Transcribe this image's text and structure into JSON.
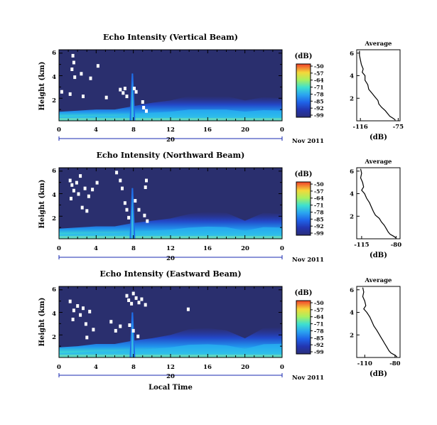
{
  "chart_data": [
    {
      "type": "heatmap",
      "title": "Echo Intensity (Vertical Beam)",
      "ylabel": "Height (km)",
      "xlim": [
        0,
        24
      ],
      "ylim": [
        0,
        6.3
      ],
      "x_ticks": [
        "0",
        "4",
        "8",
        "12",
        "16",
        "20",
        "0"
      ],
      "y_ticks": [
        "2",
        "4",
        "6"
      ],
      "date_label": "20",
      "month_label": "Nov 2011",
      "colorbar": {
        "unit": "(dB)",
        "ticks": [
          "-50",
          "-57",
          "-64",
          "-71",
          "-78",
          "-85",
          "-92",
          "-99"
        ]
      },
      "profile": {
        "title": "Average",
        "xlabel": "(dB)",
        "x_ticks": [
          "-116",
          "-75"
        ],
        "y_ticks": [
          "2",
          "4",
          "6"
        ],
        "xlim": [
          -120,
          -73
        ],
        "x": [
          -117,
          -117,
          -116,
          -115,
          -113,
          -114,
          -111,
          -111,
          -108,
          -107,
          -103,
          -100,
          -97,
          -96,
          -93,
          -89,
          -86,
          -84,
          -80,
          -78
        ],
        "y": [
          6.2,
          5.8,
          5.4,
          5.0,
          4.6,
          4.3,
          4.0,
          3.6,
          3.2,
          2.8,
          2.4,
          2.1,
          1.8,
          1.5,
          1.2,
          0.9,
          0.6,
          0.4,
          0.2,
          0.05
        ]
      },
      "white_flags": [
        [
          1.5,
          5.8
        ],
        [
          1.6,
          5.2
        ],
        [
          1.4,
          4.6
        ],
        [
          1.7,
          3.9
        ],
        [
          1.2,
          2.4
        ],
        [
          0.3,
          2.6
        ],
        [
          2.4,
          4.2
        ],
        [
          2.6,
          2.2
        ],
        [
          3.4,
          3.8
        ],
        [
          4.2,
          4.9
        ],
        [
          6.6,
          2.8
        ],
        [
          6.9,
          2.5
        ],
        [
          7.1,
          2.9
        ],
        [
          7.3,
          2.2
        ],
        [
          8.1,
          2.9
        ],
        [
          8.3,
          2.6
        ],
        [
          9.0,
          1.7
        ],
        [
          9.1,
          1.2
        ],
        [
          9.4,
          0.9
        ],
        [
          5.1,
          2.1
        ]
      ],
      "activity": {
        "low_band": {
          "x": [
            0,
            2,
            4,
            6,
            8,
            10,
            12,
            14,
            16,
            18,
            20,
            22,
            24
          ],
          "height": [
            0.8,
            0.9,
            1.0,
            1.0,
            1.3,
            1.6,
            1.8,
            2.2,
            2.2,
            2.2,
            1.8,
            2.1,
            2.0
          ]
        },
        "plume": {
          "x_center": 7.9,
          "top": 4.2
        }
      }
    },
    {
      "type": "heatmap",
      "title": "Echo Intensity (Northward Beam)",
      "ylabel": "Height (km)",
      "xlim": [
        0,
        24
      ],
      "ylim": [
        0,
        6.3
      ],
      "x_ticks": [
        "0",
        "4",
        "8",
        "12",
        "16",
        "20",
        "0"
      ],
      "y_ticks": [
        "2",
        "4",
        "6"
      ],
      "date_label": "20",
      "month_label": "Nov 2011",
      "colorbar": {
        "unit": "(dB)",
        "ticks": [
          "-50",
          "-57",
          "-64",
          "-71",
          "-78",
          "-85",
          "-92",
          "-99"
        ]
      },
      "profile": {
        "title": "Average",
        "xlabel": "(dB)",
        "x_ticks": [
          "-115",
          "-80"
        ],
        "y_ticks": [
          "2",
          "4",
          "6"
        ],
        "xlim": [
          -120,
          -76
        ],
        "x": [
          -116,
          -115,
          -116,
          -114,
          -113,
          -115,
          -112,
          -110,
          -107,
          -105,
          -103,
          -101,
          -97,
          -95,
          -92,
          -90,
          -88,
          -86,
          -82,
          -80
        ],
        "y": [
          6.2,
          5.8,
          5.4,
          5.0,
          4.6,
          4.3,
          4.0,
          3.6,
          3.2,
          2.8,
          2.4,
          2.1,
          1.8,
          1.5,
          1.2,
          0.9,
          0.6,
          0.4,
          0.2,
          0.05
        ]
      },
      "white_flags": [
        [
          1.2,
          5.2
        ],
        [
          1.4,
          4.8
        ],
        [
          1.6,
          4.3
        ],
        [
          1.9,
          5.0
        ],
        [
          2.1,
          4.0
        ],
        [
          1.3,
          3.6
        ],
        [
          2.3,
          5.6
        ],
        [
          2.8,
          4.5
        ],
        [
          3.2,
          3.8
        ],
        [
          3.6,
          4.4
        ],
        [
          4.1,
          5.0
        ],
        [
          2.5,
          2.8
        ],
        [
          3.0,
          2.5
        ],
        [
          6.2,
          5.9
        ],
        [
          6.6,
          5.2
        ],
        [
          6.8,
          4.5
        ],
        [
          7.1,
          3.2
        ],
        [
          7.3,
          2.6
        ],
        [
          7.5,
          1.9
        ],
        [
          8.2,
          3.4
        ],
        [
          8.6,
          2.6
        ],
        [
          9.2,
          2.1
        ],
        [
          9.5,
          1.6
        ],
        [
          9.3,
          4.6
        ],
        [
          9.4,
          5.2
        ]
      ],
      "activity": {
        "low_band": {
          "x": [
            0,
            2,
            4,
            6,
            8,
            10,
            12,
            14,
            16,
            18,
            20,
            22,
            24
          ],
          "height": [
            0.9,
            1.0,
            1.1,
            1.1,
            1.4,
            1.6,
            1.8,
            2.2,
            2.4,
            2.3,
            1.6,
            2.3,
            2.2
          ]
        },
        "plume": {
          "x_center": 7.9,
          "top": 4.5
        }
      }
    },
    {
      "type": "heatmap",
      "title": "Echo Intensity (Eastward Beam)",
      "ylabel": "Height (km)",
      "xlabel": "Local Time",
      "xlim": [
        0,
        24
      ],
      "ylim": [
        0,
        6.3
      ],
      "x_ticks": [
        "0",
        "4",
        "8",
        "12",
        "16",
        "20",
        "0"
      ],
      "y_ticks": [
        "2",
        "4",
        "6"
      ],
      "date_label": "20",
      "month_label": "Nov 2011",
      "colorbar": {
        "unit": "(dB)",
        "ticks": [
          "-50",
          "-57",
          "-64",
          "-71",
          "-78",
          "-85",
          "-92",
          "-99"
        ]
      },
      "profile": {
        "title": "Average",
        "xlabel": "(dB)",
        "x_ticks": [
          "-110",
          "-80"
        ],
        "y_ticks": [
          "2",
          "4",
          "6"
        ],
        "xlim": [
          -118,
          -75
        ],
        "x": [
          -112,
          -111,
          -112,
          -110,
          -109,
          -111,
          -108,
          -105,
          -103,
          -101,
          -98,
          -96,
          -94,
          -92,
          -90,
          -88,
          -86,
          -84,
          -80,
          -78
        ],
        "y": [
          6.2,
          5.8,
          5.4,
          5.0,
          4.6,
          4.3,
          4.0,
          3.6,
          3.2,
          2.8,
          2.4,
          2.1,
          1.8,
          1.5,
          1.2,
          0.9,
          0.6,
          0.4,
          0.2,
          0.05
        ]
      },
      "white_flags": [
        [
          1.2,
          5.0
        ],
        [
          1.6,
          4.2
        ],
        [
          1.5,
          3.4
        ],
        [
          2.0,
          4.6
        ],
        [
          2.3,
          3.8
        ],
        [
          2.6,
          4.4
        ],
        [
          2.9,
          3.0
        ],
        [
          3.3,
          4.1
        ],
        [
          3.7,
          2.5
        ],
        [
          5.6,
          3.2
        ],
        [
          6.1,
          2.4
        ],
        [
          6.6,
          2.8
        ],
        [
          7.3,
          5.5
        ],
        [
          7.5,
          5.1
        ],
        [
          7.8,
          4.8
        ],
        [
          8.0,
          5.7
        ],
        [
          8.3,
          5.3
        ],
        [
          8.6,
          4.9
        ],
        [
          8.9,
          5.2
        ],
        [
          9.3,
          4.7
        ],
        [
          7.6,
          2.9
        ],
        [
          8.0,
          2.4
        ],
        [
          8.5,
          1.9
        ],
        [
          3.0,
          1.8
        ],
        [
          13.9,
          4.3
        ]
      ],
      "activity": {
        "low_band": {
          "x": [
            0,
            2,
            4,
            6,
            8,
            10,
            12,
            14,
            16,
            18,
            20,
            22,
            24
          ],
          "height": [
            0.9,
            1.0,
            1.2,
            1.2,
            1.5,
            1.7,
            2.0,
            2.5,
            2.6,
            2.4,
            1.7,
            2.6,
            2.7
          ]
        },
        "plume": {
          "x_center": 7.9,
          "top": 4.0
        }
      }
    }
  ]
}
